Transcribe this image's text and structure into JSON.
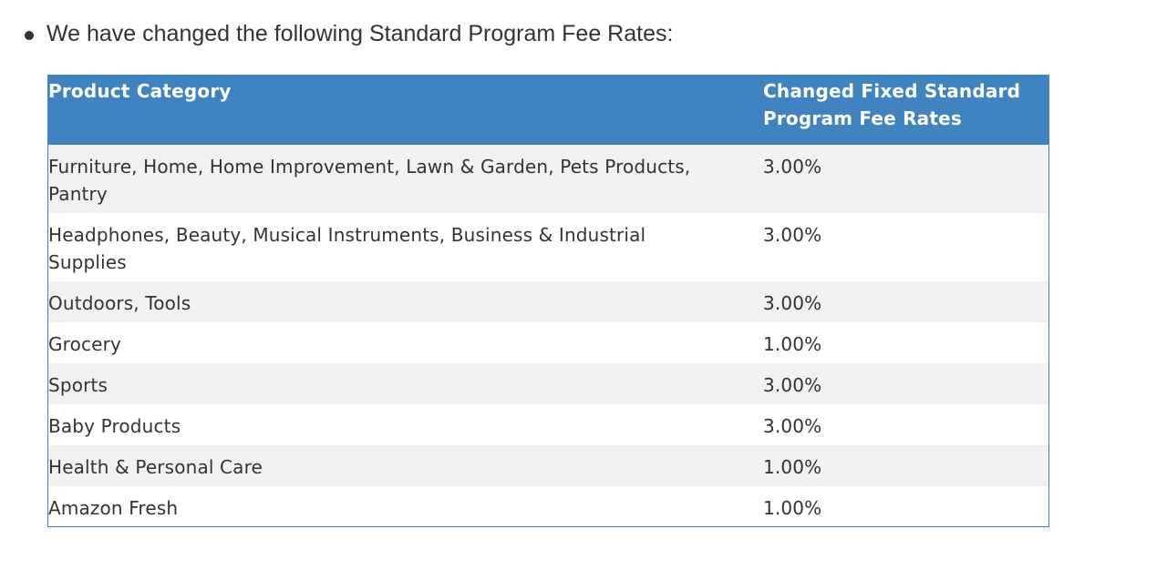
{
  "intro": {
    "text": "We have changed the following Standard Program Fee Rates:"
  },
  "table": {
    "headers": {
      "category": "Product Category",
      "rate": "Changed Fixed Standard Program Fee Rates"
    },
    "rows": [
      {
        "category": "Furniture, Home, Home Improvement, Lawn & Garden, Pets Products, Pantry",
        "rate": "3.00%"
      },
      {
        "category": "Headphones, Beauty, Musical Instruments, Business & Industrial Supplies",
        "rate": "3.00%"
      },
      {
        "category": "Outdoors, Tools",
        "rate": "3.00%"
      },
      {
        "category": "Grocery",
        "rate": "1.00%"
      },
      {
        "category": "Sports",
        "rate": "3.00%"
      },
      {
        "category": "Baby Products",
        "rate": "3.00%"
      },
      {
        "category": "Health & Personal Care",
        "rate": "1.00%"
      },
      {
        "category": "Amazon Fresh",
        "rate": "1.00%"
      }
    ]
  },
  "colors": {
    "header_bg": "#3f84c1",
    "header_text": "#ffffff",
    "row_alt_bg": "#f1f1f1",
    "body_text": "#333333"
  }
}
